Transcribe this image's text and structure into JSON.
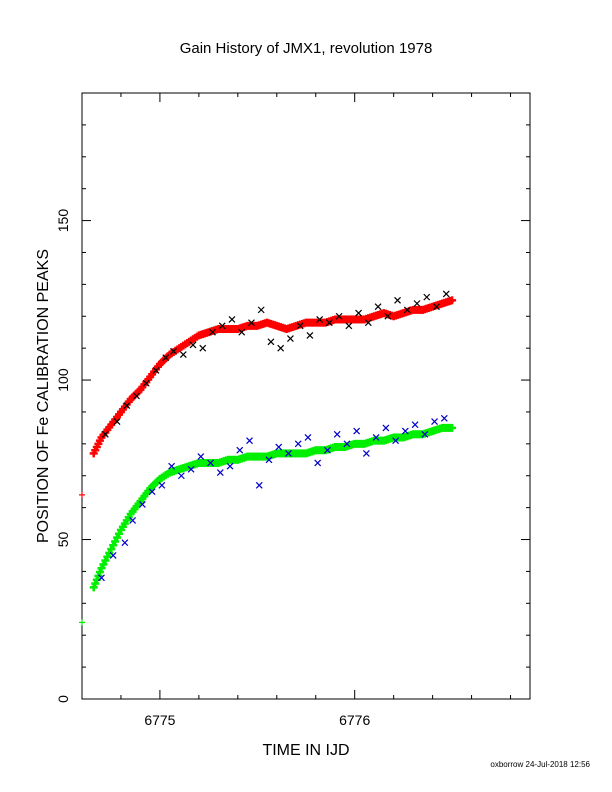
{
  "chart_data": {
    "type": "scatter",
    "title": "Gain History of JMX1, revolution 1978",
    "xlabel": "TIME IN IJD",
    "ylabel": "POSITION OF Fe CALIBRATION PEAKS",
    "xlim": [
      6774.6,
      6776.9
    ],
    "ylim": [
      0,
      190
    ],
    "x_ticks": [
      6775,
      6776
    ],
    "y_ticks": [
      0,
      50,
      100,
      150
    ],
    "grid": false,
    "legend": "none",
    "series": [
      {
        "color": "#ff0000",
        "marker": "+",
        "outliers": [
          [
            6774.6,
            64
          ]
        ],
        "values": [
          [
            6774.66,
            77
          ],
          [
            6774.7,
            82
          ],
          [
            6774.75,
            86
          ],
          [
            6774.8,
            90
          ],
          [
            6774.85,
            94
          ],
          [
            6774.9,
            97
          ],
          [
            6774.95,
            101
          ],
          [
            6775.0,
            105
          ],
          [
            6775.05,
            108
          ],
          [
            6775.1,
            110
          ],
          [
            6775.15,
            112
          ],
          [
            6775.2,
            114
          ],
          [
            6775.25,
            115
          ],
          [
            6775.3,
            116
          ],
          [
            6775.35,
            116
          ],
          [
            6775.4,
            116
          ],
          [
            6775.45,
            117
          ],
          [
            6775.5,
            117
          ],
          [
            6775.55,
            118
          ],
          [
            6775.6,
            117
          ],
          [
            6775.65,
            116
          ],
          [
            6775.7,
            117
          ],
          [
            6775.75,
            118
          ],
          [
            6775.8,
            118
          ],
          [
            6775.85,
            118
          ],
          [
            6775.9,
            119
          ],
          [
            6775.95,
            119
          ],
          [
            6776.0,
            119
          ],
          [
            6776.05,
            119
          ],
          [
            6776.1,
            120
          ],
          [
            6776.15,
            121
          ],
          [
            6776.2,
            120
          ],
          [
            6776.25,
            121
          ],
          [
            6776.3,
            122
          ],
          [
            6776.35,
            122
          ],
          [
            6776.4,
            123
          ],
          [
            6776.45,
            124
          ],
          [
            6776.5,
            125
          ]
        ]
      },
      {
        "color": "#000000",
        "marker": "x",
        "values": [
          [
            6774.72,
            83
          ],
          [
            6774.78,
            87
          ],
          [
            6774.83,
            92
          ],
          [
            6774.88,
            95
          ],
          [
            6774.93,
            99
          ],
          [
            6774.98,
            103
          ],
          [
            6775.03,
            107
          ],
          [
            6775.07,
            109
          ],
          [
            6775.12,
            108
          ],
          [
            6775.17,
            111
          ],
          [
            6775.22,
            110
          ],
          [
            6775.27,
            115
          ],
          [
            6775.32,
            117
          ],
          [
            6775.37,
            119
          ],
          [
            6775.42,
            115
          ],
          [
            6775.47,
            118
          ],
          [
            6775.52,
            122
          ],
          [
            6775.57,
            112
          ],
          [
            6775.62,
            110
          ],
          [
            6775.67,
            113
          ],
          [
            6775.72,
            117
          ],
          [
            6775.77,
            114
          ],
          [
            6775.82,
            119
          ],
          [
            6775.87,
            118
          ],
          [
            6775.92,
            120
          ],
          [
            6775.97,
            117
          ],
          [
            6776.02,
            121
          ],
          [
            6776.07,
            118
          ],
          [
            6776.12,
            123
          ],
          [
            6776.17,
            120
          ],
          [
            6776.22,
            125
          ],
          [
            6776.27,
            122
          ],
          [
            6776.32,
            124
          ],
          [
            6776.37,
            126
          ],
          [
            6776.42,
            123
          ],
          [
            6776.47,
            127
          ]
        ]
      },
      {
        "color": "#00ee00",
        "marker": "+",
        "outliers": [
          [
            6774.6,
            24
          ]
        ],
        "values": [
          [
            6774.66,
            35
          ],
          [
            6774.7,
            41
          ],
          [
            6774.75,
            47
          ],
          [
            6774.8,
            53
          ],
          [
            6774.85,
            58
          ],
          [
            6774.9,
            62
          ],
          [
            6774.95,
            66
          ],
          [
            6775.0,
            69
          ],
          [
            6775.05,
            71
          ],
          [
            6775.1,
            72
          ],
          [
            6775.15,
            73
          ],
          [
            6775.2,
            74
          ],
          [
            6775.25,
            74
          ],
          [
            6775.3,
            74
          ],
          [
            6775.35,
            75
          ],
          [
            6775.4,
            75
          ],
          [
            6775.45,
            76
          ],
          [
            6775.5,
            76
          ],
          [
            6775.55,
            76
          ],
          [
            6775.6,
            77
          ],
          [
            6775.65,
            77
          ],
          [
            6775.7,
            77
          ],
          [
            6775.75,
            77
          ],
          [
            6775.8,
            78
          ],
          [
            6775.85,
            78
          ],
          [
            6775.9,
            79
          ],
          [
            6775.95,
            79
          ],
          [
            6776.0,
            80
          ],
          [
            6776.05,
            80
          ],
          [
            6776.1,
            81
          ],
          [
            6776.15,
            81
          ],
          [
            6776.2,
            82
          ],
          [
            6776.25,
            82
          ],
          [
            6776.3,
            83
          ],
          [
            6776.35,
            83
          ],
          [
            6776.4,
            84
          ],
          [
            6776.45,
            85
          ],
          [
            6776.5,
            85
          ]
        ]
      },
      {
        "color": "#0000cc",
        "marker": "x",
        "values": [
          [
            6774.7,
            38
          ],
          [
            6774.76,
            45
          ],
          [
            6774.82,
            49
          ],
          [
            6774.86,
            56
          ],
          [
            6774.91,
            61
          ],
          [
            6774.96,
            65
          ],
          [
            6775.01,
            67
          ],
          [
            6775.06,
            73
          ],
          [
            6775.11,
            70
          ],
          [
            6775.16,
            72
          ],
          [
            6775.21,
            76
          ],
          [
            6775.26,
            74
          ],
          [
            6775.31,
            71
          ],
          [
            6775.36,
            73
          ],
          [
            6775.41,
            78
          ],
          [
            6775.46,
            81
          ],
          [
            6775.51,
            67
          ],
          [
            6775.56,
            75
          ],
          [
            6775.61,
            79
          ],
          [
            6775.66,
            77
          ],
          [
            6775.71,
            80
          ],
          [
            6775.76,
            82
          ],
          [
            6775.81,
            74
          ],
          [
            6775.86,
            78
          ],
          [
            6775.91,
            83
          ],
          [
            6775.96,
            80
          ],
          [
            6776.01,
            84
          ],
          [
            6776.06,
            77
          ],
          [
            6776.11,
            82
          ],
          [
            6776.16,
            85
          ],
          [
            6776.21,
            81
          ],
          [
            6776.26,
            84
          ],
          [
            6776.31,
            86
          ],
          [
            6776.36,
            83
          ],
          [
            6776.41,
            87
          ],
          [
            6776.46,
            88
          ]
        ]
      }
    ]
  },
  "footer": {
    "credit": "oxborrow 24-Jul-2018 12:56"
  }
}
